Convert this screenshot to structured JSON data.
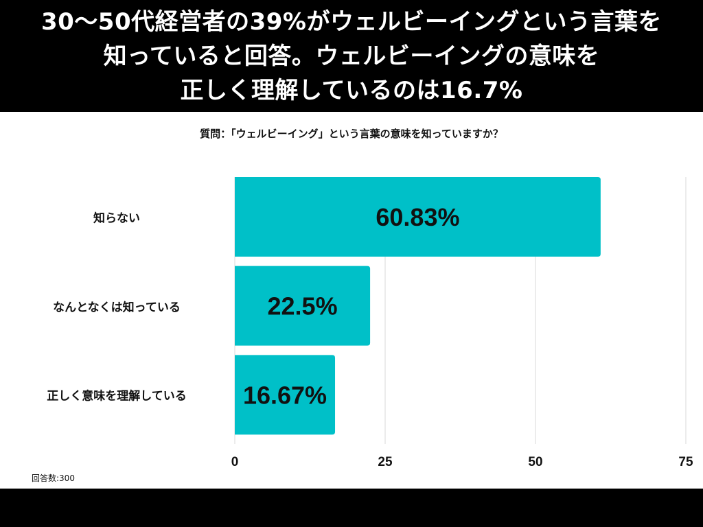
{
  "header": {
    "lines": [
      "30〜50代経営者の39%がウェルビーイングという言葉を",
      "知っていると回答。ウェルビーイングの意味を",
      "正しく理解しているのは16.7%"
    ]
  },
  "question": "質問：「ウェルビーイング」という言葉の意味を知っていますか？",
  "respondents": "回答数:300",
  "colors": {
    "bar": "#00c0c8",
    "grid": "#d9d9d9",
    "text": "#111111"
  },
  "chart_data": {
    "type": "bar",
    "orientation": "horizontal",
    "title": "質問：「ウェルビーイング」という言葉の意味を知っていますか？",
    "categories": [
      "知らない",
      "なんとなくは知っている",
      "正しく意味を理解している"
    ],
    "values": [
      60.83,
      22.5,
      16.67
    ],
    "data_labels": [
      "60.83%",
      "22.5%",
      "16.67%"
    ],
    "xlim": [
      0,
      75
    ],
    "xticks": [
      0,
      25,
      50,
      75
    ],
    "xtick_labels": [
      "0",
      "25",
      "50",
      "75"
    ],
    "grid": true,
    "xlabel": "",
    "ylabel": ""
  }
}
